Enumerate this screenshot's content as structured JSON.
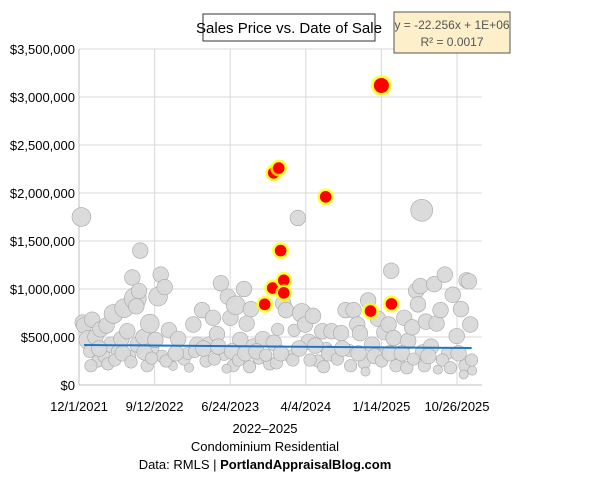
{
  "chart_data": {
    "type": "scatter",
    "title": "Sales Price vs. Date of Sale",
    "xlabel_lines": [
      "2022–2025",
      "Condominium Residential"
    ],
    "source_prefix": "Data: RMLS | ",
    "source_site": "PortlandAppraisalBlog.com",
    "trendline_label": {
      "equation": "y = -22.256x + 1E+06",
      "r2": "R² = 0.0017"
    },
    "trendline": {
      "start": [
        "2021-12-20",
        417000
      ],
      "end": [
        "2025-12-20",
        385000
      ],
      "color": "#1f77c4"
    },
    "xlim": [
      "2021-12-01",
      "2026-01-20"
    ],
    "ylim": [
      0,
      3500000
    ],
    "x_ticks": [
      "12/1/2021",
      "9/12/2022",
      "6/24/2023",
      "4/4/2024",
      "1/14/2025",
      "10/26/2025"
    ],
    "y_ticks": [
      0,
      500000,
      1000000,
      1500000,
      2000000,
      2500000,
      3000000,
      3500000
    ],
    "y_tick_labels": [
      "$0",
      "$500,000",
      "$1,000,000",
      "$1,500,000",
      "$2,000,000",
      "$2,500,000",
      "$3,000,000",
      "$3,500,000"
    ],
    "grid": true,
    "colors": {
      "points": "#d9d9d9",
      "point_outline": "#a6a6a6",
      "highlight": "#ff0000",
      "highlight_glow": "#ffff00",
      "label_box": "#fdefc9"
    },
    "series": [
      {
        "style": "gray-bubbles",
        "points": [
          [
            "2021-12-10",
            1750000,
            4
          ],
          [
            "2021-12-15",
            650000,
            3
          ],
          [
            "2021-12-20",
            620000,
            3
          ],
          [
            "2022-01-05",
            470000,
            4
          ],
          [
            "2022-01-10",
            350000,
            2
          ],
          [
            "2022-01-20",
            680000,
            3
          ],
          [
            "2022-02-01",
            500000,
            3
          ],
          [
            "2022-02-10",
            250000,
            2
          ],
          [
            "2022-02-20",
            580000,
            3
          ],
          [
            "2022-03-05",
            300000,
            2
          ],
          [
            "2022-03-15",
            620000,
            3
          ],
          [
            "2022-04-01",
            420000,
            3
          ],
          [
            "2022-04-10",
            740000,
            4
          ],
          [
            "2022-04-25",
            350000,
            2
          ],
          [
            "2022-05-10",
            480000,
            3
          ],
          [
            "2022-05-20",
            800000,
            4
          ],
          [
            "2022-06-01",
            560000,
            3
          ],
          [
            "2022-06-10",
            300000,
            2
          ],
          [
            "2022-06-20",
            1120000,
            3
          ],
          [
            "2022-07-01",
            900000,
            5
          ],
          [
            "2022-07-05",
            820000,
            3
          ],
          [
            "2022-07-10",
            420000,
            3
          ],
          [
            "2022-07-15",
            980000,
            3
          ],
          [
            "2022-07-20",
            1400000,
            3
          ],
          [
            "2022-08-01",
            500000,
            3
          ],
          [
            "2022-08-15",
            200000,
            2
          ],
          [
            "2022-08-25",
            640000,
            4
          ],
          [
            "2022-09-05",
            380000,
            2
          ],
          [
            "2022-09-15",
            470000,
            3
          ],
          [
            "2022-09-25",
            920000,
            4
          ],
          [
            "2022-10-05",
            1150000,
            3
          ],
          [
            "2022-10-10",
            300000,
            2
          ],
          [
            "2022-10-20",
            1020000,
            3
          ],
          [
            "2022-11-05",
            570000,
            3
          ],
          [
            "2022-11-20",
            200000,
            1
          ],
          [
            "2022-12-10",
            480000,
            3
          ],
          [
            "2023-01-01",
            270000,
            2
          ],
          [
            "2023-01-15",
            330000,
            2
          ],
          [
            "2023-02-05",
            630000,
            3
          ],
          [
            "2023-02-20",
            420000,
            3
          ],
          [
            "2023-03-10",
            780000,
            3
          ],
          [
            "2023-03-25",
            250000,
            2
          ],
          [
            "2023-04-05",
            420000,
            3
          ],
          [
            "2023-04-20",
            700000,
            3
          ],
          [
            "2023-05-05",
            530000,
            3
          ],
          [
            "2023-05-20",
            1060000,
            3
          ],
          [
            "2023-06-01",
            320000,
            2
          ],
          [
            "2023-06-15",
            920000,
            3
          ],
          [
            "2023-06-25",
            700000,
            3
          ],
          [
            "2023-07-05",
            200000,
            2
          ],
          [
            "2023-07-15",
            830000,
            4
          ],
          [
            "2023-08-01",
            470000,
            3
          ],
          [
            "2023-08-15",
            1000000,
            3
          ],
          [
            "2023-08-25",
            640000,
            3
          ],
          [
            "2023-09-10",
            790000,
            3
          ],
          [
            "2023-09-20",
            400000,
            3
          ],
          [
            "2023-10-10",
            280000,
            2
          ],
          [
            "2023-10-25",
            480000,
            3
          ],
          [
            "2023-11-20",
            220000,
            2
          ],
          [
            "2023-12-05",
            440000,
            3
          ],
          [
            "2023-12-20",
            580000,
            2
          ],
          [
            "2024-01-10",
            850000,
            3
          ],
          [
            "2024-01-20",
            780000,
            3
          ],
          [
            "2024-02-05",
            300000,
            2
          ],
          [
            "2024-02-20",
            570000,
            2
          ],
          [
            "2024-03-05",
            1740000,
            3
          ],
          [
            "2024-03-20",
            750000,
            4
          ],
          [
            "2024-04-01",
            630000,
            3
          ],
          [
            "2024-04-15",
            450000,
            3
          ],
          [
            "2024-05-01",
            720000,
            3
          ],
          [
            "2024-05-20",
            250000,
            2
          ],
          [
            "2024-06-05",
            560000,
            3
          ],
          [
            "2024-06-20",
            380000,
            2
          ],
          [
            "2024-07-10",
            560000,
            3
          ],
          [
            "2024-07-25",
            300000,
            2
          ],
          [
            "2024-08-15",
            540000,
            3
          ],
          [
            "2024-09-01",
            780000,
            3
          ],
          [
            "2024-09-15",
            360000,
            2
          ],
          [
            "2024-10-01",
            780000,
            3
          ],
          [
            "2024-10-15",
            630000,
            3
          ],
          [
            "2024-10-25",
            540000,
            3
          ],
          [
            "2024-11-10",
            230000,
            2
          ],
          [
            "2024-11-25",
            880000,
            3
          ],
          [
            "2024-12-10",
            420000,
            3
          ],
          [
            "2025-01-01",
            690000,
            3
          ],
          [
            "2025-01-10",
            310000,
            2
          ],
          [
            "2025-01-25",
            550000,
            3
          ],
          [
            "2025-02-10",
            630000,
            3
          ],
          [
            "2025-02-20",
            1190000,
            3
          ],
          [
            "2025-03-01",
            490000,
            3
          ],
          [
            "2025-03-20",
            260000,
            2
          ],
          [
            "2025-04-10",
            700000,
            3
          ],
          [
            "2025-04-25",
            460000,
            3
          ],
          [
            "2025-05-10",
            600000,
            3
          ],
          [
            "2025-05-25",
            980000,
            3
          ],
          [
            "2025-06-01",
            840000,
            3
          ],
          [
            "2025-06-10",
            1030000,
            3
          ],
          [
            "2025-06-15",
            1820000,
            5
          ],
          [
            "2025-06-20",
            340000,
            3
          ],
          [
            "2025-07-01",
            660000,
            3
          ],
          [
            "2025-07-20",
            400000,
            3
          ],
          [
            "2025-08-01",
            1050000,
            3
          ],
          [
            "2025-08-10",
            640000,
            3
          ],
          [
            "2025-08-25",
            780000,
            3
          ],
          [
            "2025-09-10",
            1150000,
            3
          ],
          [
            "2025-09-20",
            330000,
            2
          ],
          [
            "2025-10-10",
            940000,
            3
          ],
          [
            "2025-10-25",
            510000,
            3
          ],
          [
            "2025-11-10",
            790000,
            3
          ],
          [
            "2025-11-25",
            200000,
            2
          ],
          [
            "2025-12-01",
            1090000,
            3
          ],
          [
            "2025-12-10",
            1080000,
            3
          ],
          [
            "2025-12-15",
            630000,
            3
          ],
          [
            "2025-12-20",
            260000,
            2
          ],
          [
            "2025-12-22",
            150000,
            1
          ],
          [
            "2022-01-15",
            200000,
            2
          ],
          [
            "2022-02-15",
            380000,
            3
          ],
          [
            "2022-03-20",
            220000,
            2
          ],
          [
            "2022-04-15",
            260000,
            2
          ],
          [
            "2022-05-15",
            330000,
            3
          ],
          [
            "2022-06-15",
            240000,
            2
          ],
          [
            "2022-08-05",
            340000,
            3
          ],
          [
            "2022-09-01",
            280000,
            2
          ],
          [
            "2022-10-25",
            250000,
            2
          ],
          [
            "2022-12-01",
            330000,
            3
          ],
          [
            "2023-01-20",
            180000,
            1
          ],
          [
            "2023-02-10",
            350000,
            2
          ],
          [
            "2023-03-15",
            380000,
            3
          ],
          [
            "2023-04-25",
            270000,
            2
          ],
          [
            "2023-05-10",
            400000,
            3
          ],
          [
            "2023-06-10",
            170000,
            1
          ],
          [
            "2023-07-01",
            350000,
            3
          ],
          [
            "2023-07-25",
            260000,
            2
          ],
          [
            "2023-08-20",
            330000,
            3
          ],
          [
            "2023-09-05",
            190000,
            2
          ],
          [
            "2023-10-01",
            350000,
            3
          ],
          [
            "2023-11-05",
            310000,
            2
          ],
          [
            "2023-12-15",
            230000,
            2
          ],
          [
            "2024-01-01",
            330000,
            3
          ],
          [
            "2024-02-15",
            260000,
            2
          ],
          [
            "2024-03-10",
            380000,
            3
          ],
          [
            "2024-04-20",
            260000,
            2
          ],
          [
            "2024-05-10",
            410000,
            3
          ],
          [
            "2024-06-10",
            190000,
            2
          ],
          [
            "2024-07-01",
            330000,
            3
          ],
          [
            "2024-08-01",
            270000,
            2
          ],
          [
            "2024-08-20",
            380000,
            3
          ],
          [
            "2024-09-20",
            200000,
            2
          ],
          [
            "2024-10-20",
            330000,
            3
          ],
          [
            "2024-11-15",
            140000,
            1
          ],
          [
            "2024-12-20",
            300000,
            3
          ],
          [
            "2025-01-15",
            250000,
            2
          ],
          [
            "2025-02-15",
            330000,
            3
          ],
          [
            "2025-03-10",
            200000,
            2
          ],
          [
            "2025-04-01",
            330000,
            3
          ],
          [
            "2025-04-20",
            180000,
            2
          ],
          [
            "2025-05-15",
            270000,
            2
          ],
          [
            "2025-06-25",
            200000,
            2
          ],
          [
            "2025-07-10",
            300000,
            3
          ],
          [
            "2025-08-15",
            160000,
            1
          ],
          [
            "2025-09-01",
            260000,
            2
          ],
          [
            "2025-10-01",
            180000,
            2
          ],
          [
            "2025-11-01",
            330000,
            3
          ],
          [
            "2025-11-20",
            110000,
            1
          ]
        ]
      },
      {
        "style": "red-highlighted",
        "points": [
          [
            "2023-11-01",
            840000
          ],
          [
            "2023-12-01",
            1010000
          ],
          [
            "2023-12-05",
            2210000
          ],
          [
            "2023-12-24",
            2260000
          ],
          [
            "2023-12-31",
            1400000
          ],
          [
            "2024-01-12",
            1090000
          ],
          [
            "2024-01-12",
            960000
          ],
          [
            "2024-06-18",
            1960000
          ],
          [
            "2024-12-04",
            770000
          ],
          [
            "2025-01-14",
            3120000
          ],
          [
            "2025-02-21",
            845000
          ]
        ]
      }
    ]
  }
}
